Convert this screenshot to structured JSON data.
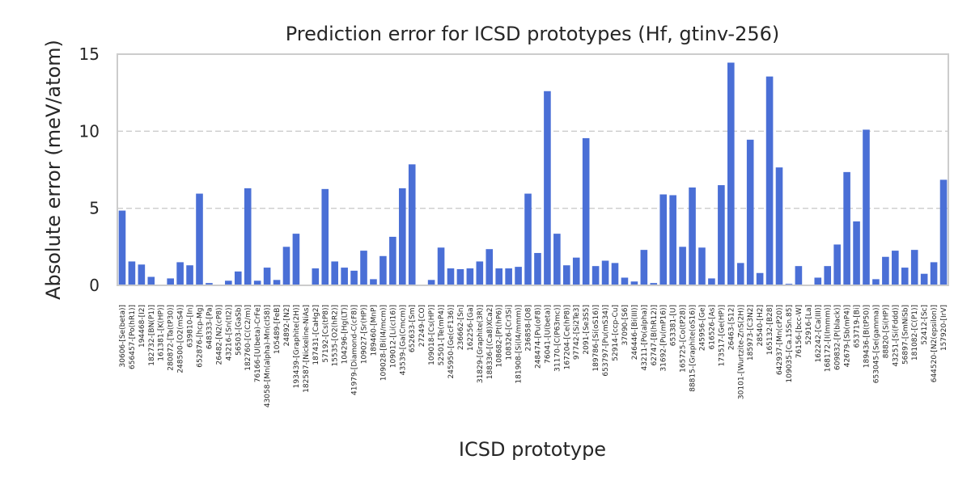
{
  "chart_data": {
    "type": "bar",
    "title": "Prediction error for ICSD prototypes (Hf, gtinv-256)",
    "xlabel": "ICSD prototype",
    "ylabel": "Absolute error (meV/atom)",
    "ylim": [
      0,
      15
    ],
    "yticks": [
      0,
      5,
      10,
      15
    ],
    "grid": true,
    "bar_color": "#4a6fd6",
    "categories": [
      "30606-[Se(beta)]",
      "656457-[Po(hR1)]",
      "194468-[I2]",
      "182732-[BN(P1)]",
      "161381-[K(HP)]",
      "280872-[Ta(tP30)]",
      "248500-[O2(mS4)]",
      "639810-[In]",
      "652876-[hcp-Mg]",
      "648333-[Pa]",
      "26482-[N2(cP8)]",
      "43216-[Sn(tI2)]",
      "56503-[GaSb]",
      "182760-[C(C2/m)]",
      "76166-[U(beta)-CrFe]",
      "43058-[Mn(alpha)-Mn(cI58)]",
      "105489-[FeB]",
      "24892-[N2]",
      "193439-[Graphite(2H)]",
      "182587-[Nickeline-NiAs]",
      "187431-[CaHg2]",
      "57192-[Cs(tP8)]",
      "15535-[O2(hR2)]",
      "104296-[Hg(LT)]",
      "41979-[Diamond-C(cF8)]",
      "109027-[Sr(HP)]",
      "189460-[MnP]",
      "109028-[Bi(I4/mcm)]",
      "109012-[Li(cI16)]",
      "43539-[Ga(Cmcm)]",
      "652633-[Sm]",
      "27249-[CO]",
      "109018-[Cs(HP)]",
      "52501-[Te(mP4)]",
      "245950-[Ge(cF136)]",
      "236662-[Sn]",
      "162256-[Ga]",
      "31829-[Graphite(3R)]",
      "188336-[(Ca8)XCa2]",
      "108682-[Pt(hP6)]",
      "108326-[Cr3Si]",
      "181908-[Si(I4/mmm)]",
      "236858-[O8]",
      "248474-[Pu(oF8)]",
      "76041-[U(beta)]",
      "31170-[C(P63mc)]",
      "167204-[Ce(hP8)]",
      "97742-[Si2Te3]",
      "2091-[Se3S5]",
      "189786-[Si(oS16)]",
      "653797-[Pu(mS34)]",
      "52914-[ccp-Cu]",
      "37090-[S6]",
      "246446-[Bi(III)]",
      "43211-[Po(alpha)]",
      "62747-[B(hR12)]",
      "31692-[Pu(mP16)]",
      "653381-[U]",
      "165725-[Co(tP28)]",
      "88815-[Graphite(oS16)]",
      "245956-[Ge]",
      "616526-[As]",
      "173517-[Ge(HP)]",
      "26463-[S12]",
      "30101-[Wurtzite-ZnS(2H)]",
      "185973-[C3N2]",
      "28540-[H2]",
      "165132-[B28]",
      "642937-[Mn(cP20)]",
      "109035-[Ca.15Sn.85]",
      "76156-[bcc-W]",
      "52916-[La]",
      "162242-[Ca(III)]",
      "168172-[I(Immm)]",
      "609832-[P(black)]",
      "42679-[Sb(mP4)]",
      "653719-[Bi]",
      "189436-[B(tP50)]",
      "653045-[Se(gamma)]",
      "88820-[Si(HP)]",
      "43251-[Si(Fddd)]",
      "56897-[SmNiSb]",
      "181082-[C(P1)]",
      "52412-[Sc]",
      "644520-[N2(epsilon)]",
      "157920-[IrV]"
    ],
    "values": [
      4.85,
      1.55,
      1.35,
      0.55,
      0.0,
      0.45,
      1.5,
      1.3,
      5.95,
      0.15,
      0.0,
      0.3,
      0.9,
      6.3,
      0.3,
      1.15,
      0.35,
      2.5,
      3.35,
      0.0,
      1.1,
      6.25,
      1.55,
      1.15,
      0.95,
      2.25,
      0.4,
      1.9,
      3.15,
      6.3,
      7.85,
      0.0,
      0.35,
      2.45,
      1.1,
      1.05,
      1.1,
      1.55,
      2.35,
      1.1,
      1.1,
      1.2,
      5.95,
      2.1,
      12.6,
      3.35,
      1.3,
      1.8,
      9.55,
      1.25,
      1.6,
      1.45,
      0.5,
      0.25,
      2.3,
      0.15,
      5.9,
      5.85,
      2.5,
      6.35,
      2.45,
      0.45,
      6.5,
      14.45,
      1.45,
      9.45,
      0.8,
      13.55,
      7.65,
      0.1,
      1.25,
      0.0,
      0.5,
      1.25,
      2.65,
      7.35,
      4.15,
      10.1,
      0.4,
      1.85,
      2.25,
      1.15,
      2.3,
      0.75,
      1.5,
      6.85
    ]
  }
}
